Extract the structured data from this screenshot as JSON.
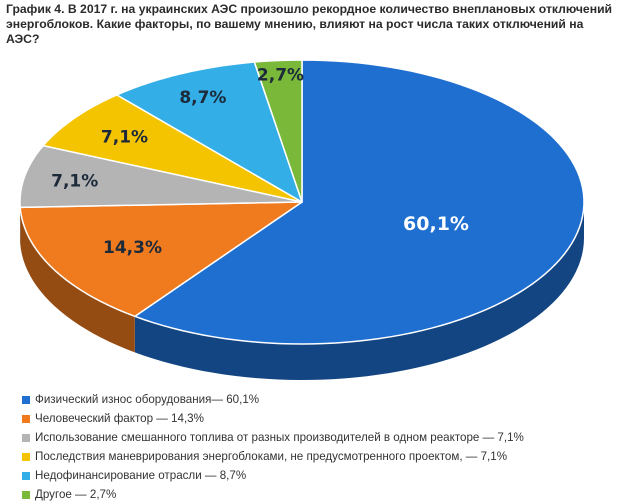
{
  "chart_data": {
    "type": "pie",
    "title": "График 4. В 2017 г. на украинских АЭС произошло рекордное количество внеплановых отключений энергоблоков. Какие факторы, по вашему мнению, влияют на рост числа таких отключений на АЭС?",
    "slices": [
      {
        "label": "Физический износ оборудования",
        "value": 60.1,
        "value_label": "60,1%",
        "legend_text": "Физический износ оборудования— 60,1%",
        "color": "#1f6fd1"
      },
      {
        "label": "Человеческий фактор",
        "value": 14.3,
        "value_label": "14,3%",
        "legend_text": "Человеческий фактор — 14,3%",
        "color": "#f07a1e"
      },
      {
        "label": "Использование смешанного топлива от разных производителей в одном реакторе",
        "value": 7.1,
        "value_label": "7,1%",
        "legend_text": "Использование смешанного топлива от разных производителей в одном реакторе — 7,1%",
        "color": "#b4b4b4"
      },
      {
        "label": "Последствия маневрирования энергоблоками, не предусмотренного проектом",
        "value": 7.1,
        "value_label": "7,1%",
        "legend_text": "Последствия маневрирования энергоблоками, не предусмотренного проектом, — 7,1%",
        "color": "#f5c400"
      },
      {
        "label": "Недофинансирование отрасли",
        "value": 8.7,
        "value_label": "8,7%",
        "legend_text": "Недофинансирование отрасли — 8,7%",
        "color": "#33aee6"
      },
      {
        "label": "Другое",
        "value": 2.7,
        "value_label": "2,7%",
        "legend_text": "Другое — 2,7%",
        "color": "#7ab83a"
      }
    ],
    "legend_position": "bottom-left",
    "style": "3d"
  }
}
